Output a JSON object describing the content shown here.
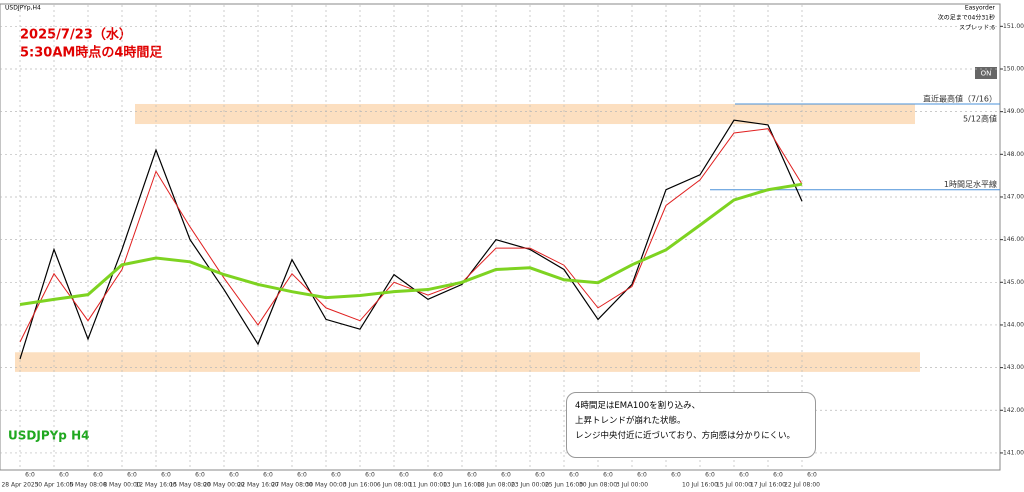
{
  "chart_data": {
    "type": "line",
    "title": "2025/7/23（水）",
    "subtitle": "5:30AM時点の4時間足",
    "symbol_header": "USDJPYp,H4",
    "symbol_label": "USDJPYp H4",
    "panel": [
      "Easyorder",
      "次の足まで04分31秒",
      "スプレッド:6"
    ],
    "button": "ON",
    "categories": [
      "28 Apr 2025",
      "30 Apr 16:00",
      "5 May 08:00",
      "8 May 00:00",
      "12 May 16:00",
      "15 May 08:00",
      "20 May 00:00",
      "22 May 16:00",
      "27 May 08:00",
      "30 May 00:00",
      "3 Jun 16:00",
      "6 Jun 08:00",
      "11 Jun 00:00",
      "13 Jun 16:00",
      "18 Jun 08:00",
      "23 Jun 00:00",
      "25 Jun 16:00",
      "30 Jun 08:00",
      "3 Jul 00:00",
      null,
      "10 Jul 16:00",
      "15 Jul 00:00",
      "17 Jul 16:00",
      "22 Jul 08:00"
    ],
    "x_sublabels": [
      "6:0",
      "6:0",
      "6:0",
      "6:0",
      "6:0",
      "6:0",
      "6:0",
      "6:0",
      "6:0",
      "6:0",
      "6:0",
      "6:0",
      "6:0",
      "6:0",
      "6:0",
      "6:0",
      "6:0",
      "6:0",
      "6:0",
      "6:0",
      "6:0",
      "6:0",
      "6:0",
      "6:0"
    ],
    "series": [
      {
        "color": "#000000",
        "values": [
          143.2,
          145.77,
          143.67,
          145.77,
          148.1,
          146.0,
          144.83,
          143.55,
          145.53,
          144.13,
          143.9,
          145.18,
          144.6,
          144.95,
          146.0,
          145.77,
          145.3,
          144.13,
          144.95,
          147.17,
          147.52,
          148.8,
          148.69,
          146.9
        ]
      },
      {
        "color": "#e02020",
        "values": [
          143.6,
          145.2,
          144.1,
          145.3,
          147.6,
          146.3,
          145.1,
          144.0,
          145.2,
          144.4,
          144.1,
          145.0,
          144.7,
          145.0,
          145.8,
          145.8,
          145.4,
          144.4,
          144.9,
          146.8,
          147.4,
          148.5,
          148.6,
          147.3
        ]
      },
      {
        "color": "#7ed321",
        "values": [
          144.48,
          144.6,
          144.71,
          145.41,
          145.57,
          145.48,
          145.18,
          144.95,
          144.78,
          144.64,
          144.69,
          144.78,
          144.83,
          145.0,
          145.3,
          145.34,
          145.06,
          144.99,
          145.41,
          145.76,
          146.34,
          146.93,
          147.17,
          147.3
        ]
      }
    ],
    "zones": [
      {
        "from": 148.71,
        "to": 149.18,
        "color": "#fbd9b5"
      },
      {
        "from": 142.9,
        "to": 143.36,
        "color": "#fbd9b5"
      }
    ],
    "levels": [
      {
        "value": 149.18,
        "label": "直近最高値（7/16）",
        "color": "#4a90d9"
      },
      {
        "value": 148.71,
        "label": "5/12高値",
        "color": "#fbd9b5"
      },
      {
        "value": 147.17,
        "label": "1時間足水平線",
        "color": "#4a90d9"
      }
    ],
    "ylim": [
      140.6,
      151.5
    ],
    "yticks": [
      {
        "value": 141,
        "label": "141.000"
      },
      {
        "value": 142,
        "label": "142.000"
      },
      {
        "value": 143,
        "label": "143.000"
      },
      {
        "value": 144,
        "label": "144.000"
      },
      {
        "value": 145,
        "label": "145.000"
      },
      {
        "value": 146,
        "label": "146.000"
      },
      {
        "value": 147,
        "label": "147.000"
      },
      {
        "value": 148,
        "label": "148.000"
      },
      {
        "value": 149,
        "label": "149.000"
      },
      {
        "value": 150,
        "label": "150.000"
      },
      {
        "value": 151,
        "label": "151.000"
      }
    ],
    "grid": true,
    "note": [
      "4時間足はEMA100を割り込み、",
      "上昇トレンドが崩れた状態。",
      "レンジ中央付近に近づいており、方向感は分かりにくい。"
    ]
  }
}
